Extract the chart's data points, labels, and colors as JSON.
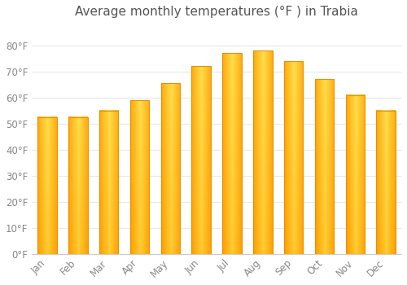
{
  "title": "Average monthly temperatures (°F ) in Trabia",
  "months": [
    "Jan",
    "Feb",
    "Mar",
    "Apr",
    "May",
    "Jun",
    "Jul",
    "Aug",
    "Sep",
    "Oct",
    "Nov",
    "Dec"
  ],
  "values": [
    52.5,
    52.5,
    55.0,
    59.0,
    65.5,
    72.0,
    77.0,
    78.0,
    74.0,
    67.0,
    61.0,
    55.0
  ],
  "bar_color_center": "#FFD966",
  "bar_color_edge": "#FFA500",
  "bar_color_bottom": "#F0A000",
  "background_color": "#ffffff",
  "plot_bg_color": "#ffffff",
  "ylim": [
    0,
    88
  ],
  "yticks": [
    0,
    10,
    20,
    30,
    40,
    50,
    60,
    70,
    80
  ],
  "ytick_labels": [
    "0°F",
    "10°F",
    "20°F",
    "30°F",
    "40°F",
    "50°F",
    "60°F",
    "70°F",
    "80°F"
  ],
  "title_fontsize": 11,
  "tick_fontsize": 8.5,
  "grid_color": "#e8e8e8",
  "bar_width": 0.62
}
